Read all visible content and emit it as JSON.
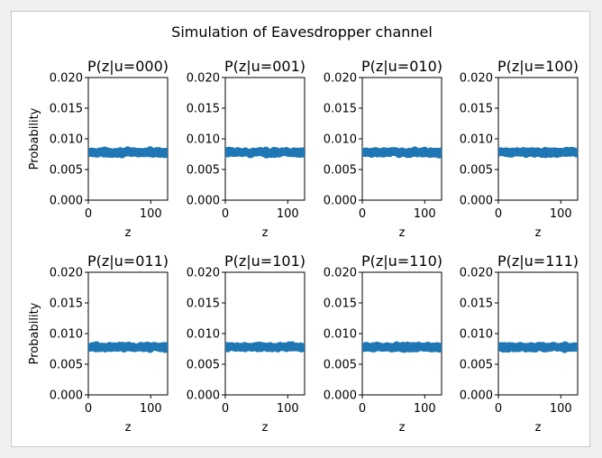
{
  "figure": {
    "suptitle": "Simulation of Eavesdropper channel",
    "marker_color": "#1f77b4"
  },
  "chart_data": [
    {
      "type": "scatter",
      "title": "P(z|u=000)",
      "xlabel": "z",
      "ylabel": "Probability",
      "xlim": [
        0,
        127
      ],
      "ylim": [
        0,
        0.02
      ],
      "xticks": [
        "0",
        "100"
      ],
      "yticks": [
        "0.000",
        "0.005",
        "0.010",
        "0.015",
        "0.020"
      ],
      "x_range": [
        0,
        127
      ],
      "y_mean": 0.0078,
      "y_spread": 0.0004,
      "series": [
        {
          "color": "#1f77b4",
          "x": "0..127 (all integers)",
          "y_approx": 0.0078
        }
      ]
    },
    {
      "type": "scatter",
      "title": "P(z|u=001)",
      "xlabel": "z",
      "ylabel": "",
      "xlim": [
        0,
        127
      ],
      "ylim": [
        0,
        0.02
      ],
      "xticks": [
        "0",
        "100"
      ],
      "yticks": [
        "0.000",
        "0.005",
        "0.010",
        "0.015",
        "0.020"
      ],
      "x_range": [
        0,
        127
      ],
      "y_mean": 0.0078,
      "y_spread": 0.0004,
      "series": [
        {
          "color": "#1f77b4",
          "x": "0..127 (all integers)",
          "y_approx": 0.0078
        }
      ]
    },
    {
      "type": "scatter",
      "title": "P(z|u=010)",
      "xlabel": "z",
      "ylabel": "",
      "xlim": [
        0,
        127
      ],
      "ylim": [
        0,
        0.02
      ],
      "xticks": [
        "0",
        "100"
      ],
      "yticks": [
        "0.000",
        "0.005",
        "0.010",
        "0.015",
        "0.020"
      ],
      "x_range": [
        0,
        127
      ],
      "y_mean": 0.0078,
      "y_spread": 0.0004,
      "series": [
        {
          "color": "#1f77b4",
          "x": "0..127 (all integers)",
          "y_approx": 0.0078
        }
      ]
    },
    {
      "type": "scatter",
      "title": "P(z|u=100)",
      "xlabel": "z",
      "ylabel": "",
      "xlim": [
        0,
        127
      ],
      "ylim": [
        0,
        0.02
      ],
      "xticks": [
        "0",
        "100"
      ],
      "yticks": [
        "0.000",
        "0.005",
        "0.010",
        "0.015",
        "0.020"
      ],
      "x_range": [
        0,
        127
      ],
      "y_mean": 0.0078,
      "y_spread": 0.0004,
      "series": [
        {
          "color": "#1f77b4",
          "x": "0..127 (all integers)",
          "y_approx": 0.0078
        }
      ]
    },
    {
      "type": "scatter",
      "title": "P(z|u=011)",
      "xlabel": "z",
      "ylabel": "Probability",
      "xlim": [
        0,
        127
      ],
      "ylim": [
        0,
        0.02
      ],
      "xticks": [
        "0",
        "100"
      ],
      "yticks": [
        "0.000",
        "0.005",
        "0.010",
        "0.015",
        "0.020"
      ],
      "x_range": [
        0,
        127
      ],
      "y_mean": 0.0078,
      "y_spread": 0.0004,
      "series": [
        {
          "color": "#1f77b4",
          "x": "0..127 (all integers)",
          "y_approx": 0.0078
        }
      ]
    },
    {
      "type": "scatter",
      "title": "P(z|u=101)",
      "xlabel": "z",
      "ylabel": "",
      "xlim": [
        0,
        127
      ],
      "ylim": [
        0,
        0.02
      ],
      "xticks": [
        "0",
        "100"
      ],
      "yticks": [
        "0.000",
        "0.005",
        "0.010",
        "0.015",
        "0.020"
      ],
      "x_range": [
        0,
        127
      ],
      "y_mean": 0.0078,
      "y_spread": 0.0004,
      "series": [
        {
          "color": "#1f77b4",
          "x": "0..127 (all integers)",
          "y_approx": 0.0078
        }
      ]
    },
    {
      "type": "scatter",
      "title": "P(z|u=110)",
      "xlabel": "z",
      "ylabel": "",
      "xlim": [
        0,
        127
      ],
      "ylim": [
        0,
        0.02
      ],
      "xticks": [
        "0",
        "100"
      ],
      "yticks": [
        "0.000",
        "0.005",
        "0.010",
        "0.015",
        "0.020"
      ],
      "x_range": [
        0,
        127
      ],
      "y_mean": 0.0078,
      "y_spread": 0.0004,
      "series": [
        {
          "color": "#1f77b4",
          "x": "0..127 (all integers)",
          "y_approx": 0.0078
        }
      ]
    },
    {
      "type": "scatter",
      "title": "P(z|u=111)",
      "xlabel": "z",
      "ylabel": "",
      "xlim": [
        0,
        127
      ],
      "ylim": [
        0,
        0.02
      ],
      "xticks": [
        "0",
        "100"
      ],
      "yticks": [
        "0.000",
        "0.005",
        "0.010",
        "0.015",
        "0.020"
      ],
      "x_range": [
        0,
        127
      ],
      "y_mean": 0.0078,
      "y_spread": 0.0004,
      "series": [
        {
          "color": "#1f77b4",
          "x": "0..127 (all integers)",
          "y_approx": 0.0078
        }
      ]
    }
  ]
}
